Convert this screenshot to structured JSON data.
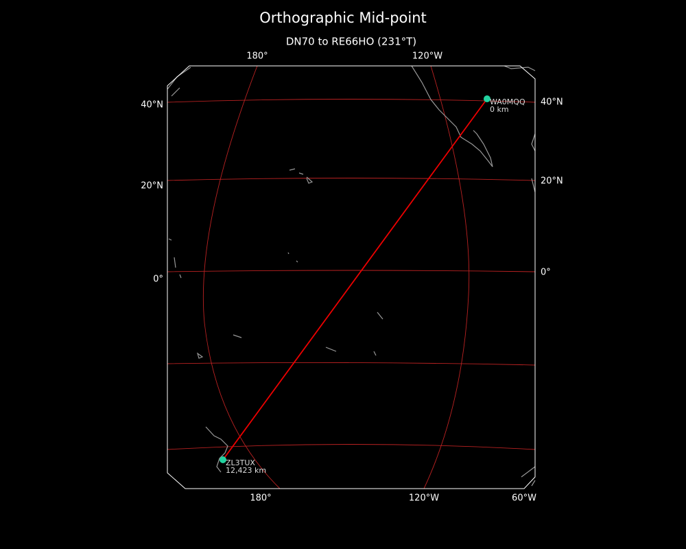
{
  "title": "Orthographic Mid-point",
  "subtitle": "DN70 to RE66HO (231°T)",
  "top_labels": [
    "180°",
    "120°W"
  ],
  "bottom_labels": [
    "180°",
    "120°W",
    "60°W"
  ],
  "left_labels": [
    "40°N",
    "20°N",
    "0°"
  ],
  "right_labels": [
    "40°N",
    "20°N",
    "0°"
  ],
  "stations": [
    {
      "call": "WA0MQQ",
      "distance": "0 km"
    },
    {
      "call": "ZL3TUX",
      "distance": "12,423 km"
    }
  ]
}
